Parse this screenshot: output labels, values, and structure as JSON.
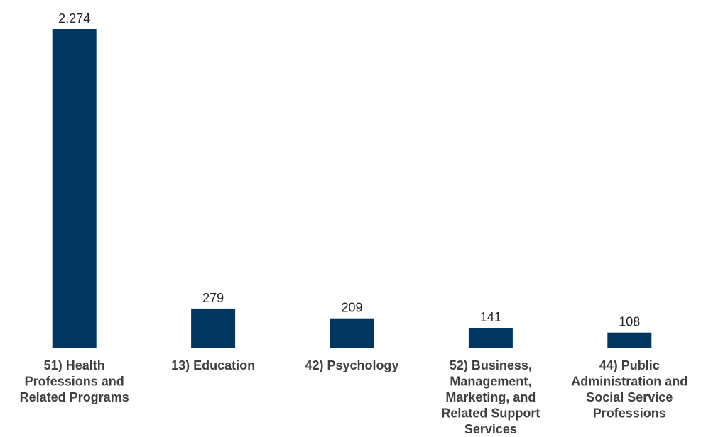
{
  "chart_data": {
    "type": "bar",
    "categories": [
      "51) Health Professions and Related Programs",
      "13) Education",
      "42) Psychology",
      "52) Business, Management, Marketing, and Related Support Services",
      "44) Public Administration and Social Service Professions"
    ],
    "category_lines": [
      [
        "51) Health",
        "Professions and",
        "Related Programs"
      ],
      [
        "13) Education"
      ],
      [
        "42) Psychology"
      ],
      [
        "52) Business,",
        "Management,",
        "Marketing, and",
        "Related Support",
        "Services"
      ],
      [
        "44) Public",
        "Administration and",
        "Social Service",
        "Professions"
      ]
    ],
    "values": [
      2274,
      279,
      209,
      141,
      108
    ],
    "value_labels": [
      "2,274",
      "279",
      "209",
      "141",
      "108"
    ],
    "title": "",
    "xlabel": "",
    "ylabel": "",
    "ylim": [
      0,
      2274
    ],
    "grid": false,
    "legend": "none",
    "bar_color": "#003660",
    "axis_color": "#d9d9d9"
  }
}
